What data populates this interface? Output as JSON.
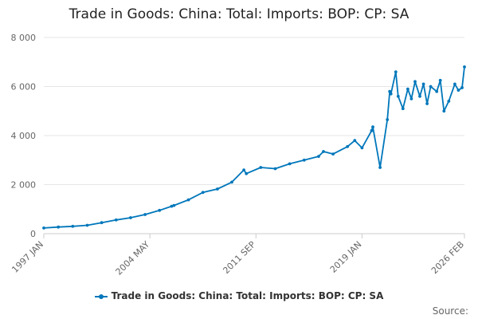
{
  "chart_data": {
    "type": "line",
    "title": "Trade in Goods: China: Total: Imports: BOP: CP: SA",
    "x_tick_labels": [
      "1997 JAN",
      "2004 MAY",
      "2011 SEP",
      "2019 JAN",
      "2026 FEB"
    ],
    "y_tick_labels": [
      "0",
      "2 000",
      "4 000",
      "6 000",
      "8 000"
    ],
    "ylim": [
      0,
      8000
    ],
    "grid": true,
    "legend_position": "bottom",
    "series_color": "#0077bb",
    "series": [
      {
        "name": "Trade in Goods: China: Total: Imports: BOP: CP: SA",
        "x": [
          "1997 JAN",
          "1998 JAN",
          "1999 JAN",
          "2000 JAN",
          "2001 JAN",
          "2002 JAN",
          "2003 JAN",
          "2004 JAN",
          "2005 JAN",
          "2005 NOV",
          "2006 JAN",
          "2007 JAN",
          "2008 JAN",
          "2009 JAN",
          "2010 JAN",
          "2010 NOV",
          "2011 JAN",
          "2012 JAN",
          "2013 JAN",
          "2014 JAN",
          "2015 JAN",
          "2016 JAN",
          "2016 MAY",
          "2017 JAN",
          "2018 JAN",
          "2018 JUL",
          "2019 JAN",
          "2019 SEP",
          "2019 OCT",
          "2020 APR",
          "2020 OCT",
          "2020 DEC",
          "2021 JAN",
          "2021 MAY",
          "2021 JUL",
          "2021 NOV",
          "2022 MAR",
          "2022 JUN",
          "2022 SEP",
          "2023 JAN",
          "2023 APR",
          "2023 JUL",
          "2023 OCT",
          "2024 MAR",
          "2024 JUN",
          "2024 SEP",
          "2025 JAN",
          "2025 JUN",
          "2025 SEP",
          "2025 DEC",
          "2026 FEB"
        ],
        "values": [
          230,
          270,
          300,
          340,
          450,
          560,
          650,
          780,
          950,
          1120,
          1150,
          1380,
          1680,
          1820,
          2100,
          2600,
          2450,
          2700,
          2650,
          2850,
          3000,
          3150,
          3350,
          3250,
          3550,
          3800,
          3500,
          4200,
          4350,
          2700,
          4650,
          5800,
          5700,
          6600,
          5600,
          5100,
          5900,
          5500,
          6200,
          5600,
          6100,
          5300,
          6000,
          5800,
          6250,
          5000,
          5400,
          6100,
          5850,
          5950,
          6800
        ]
      }
    ]
  },
  "legend_label": "Trade in Goods: China: Total: Imports: BOP: CP: SA",
  "credits": "Source:"
}
